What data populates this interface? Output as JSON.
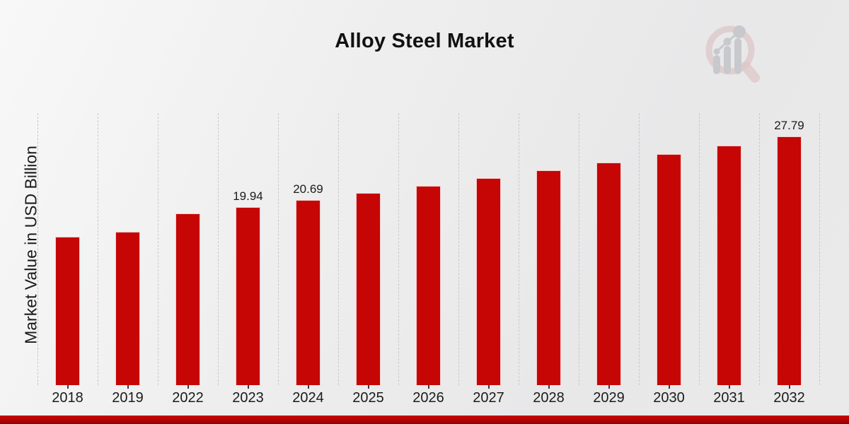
{
  "chart_data": {
    "type": "bar",
    "title": "Alloy Steel Market",
    "ylabel": "Market Value in USD Billion",
    "xlabel": "",
    "categories": [
      "2018",
      "2019",
      "2022",
      "2023",
      "2024",
      "2025",
      "2026",
      "2027",
      "2028",
      "2029",
      "2030",
      "2031",
      "2032"
    ],
    "values": [
      16.55,
      17.15,
      19.22,
      19.94,
      20.69,
      21.47,
      22.28,
      23.11,
      23.98,
      24.88,
      25.81,
      26.78,
      27.79
    ],
    "value_labels": [
      null,
      null,
      null,
      "19.94",
      "20.69",
      null,
      null,
      null,
      null,
      null,
      null,
      null,
      "27.79"
    ],
    "ylim": [
      0,
      30.4
    ],
    "grid": "vertical-dashed",
    "legend": "none",
    "bar_color": "#c60505",
    "gridline_color": "#c9c9c9",
    "footer_band_color": "#b50303"
  },
  "watermark": {
    "name": "magnifier-bar-chart-logo",
    "ring_color": "#cf9e9e",
    "bar_color": "#a2a5ad"
  }
}
